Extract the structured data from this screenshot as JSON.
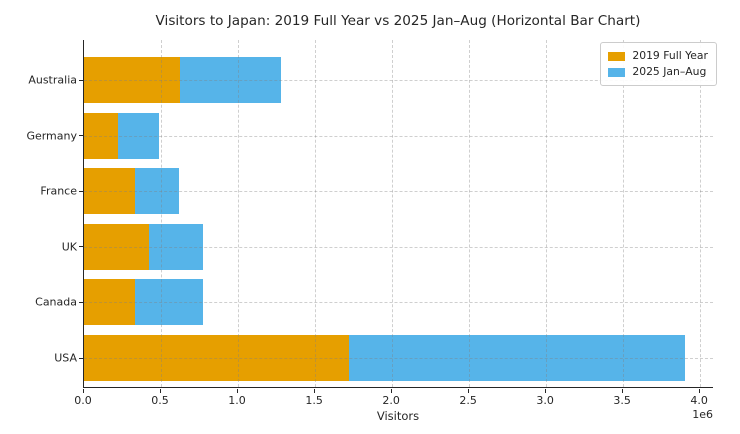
{
  "figure": {
    "background": "#ffffff",
    "text_color": "#262626",
    "spine_color": "#262626",
    "grid_color": "#828282"
  },
  "chart_data": {
    "type": "bar",
    "orientation": "horizontal",
    "stacked": true,
    "title": "Visitors to Japan: 2019 Full Year vs 2025 Jan–Aug (Horizontal Bar Chart)",
    "xlabel": "Visitors",
    "ylabel": "",
    "offset_label": "1e6",
    "categories_top_to_bottom": [
      "Australia",
      "Germany",
      "France",
      "UK",
      "Canada",
      "USA"
    ],
    "series": [
      {
        "name": "2019 Full Year",
        "color": "#E69F00",
        "values_millions": [
          0.62,
          0.22,
          0.33,
          0.42,
          0.33,
          1.72
        ]
      },
      {
        "name": "2025 Jan–Aug",
        "color": "#56B4E9",
        "values_millions": [
          0.66,
          0.27,
          0.29,
          0.35,
          0.44,
          2.18
        ]
      }
    ],
    "stacked_totals_millions": [
      1.28,
      0.49,
      0.62,
      0.77,
      0.77,
      3.9
    ],
    "x_ticks": [
      "0.0",
      "0.5",
      "1.0",
      "1.5",
      "2.0",
      "2.5",
      "3.0",
      "3.5",
      "4.0"
    ],
    "xlim_millions": [
      0,
      4.09
    ],
    "grid": true,
    "grid_style": "dashed",
    "legend_position": "upper right"
  },
  "legend": {
    "items": [
      {
        "label": "2019 Full Year",
        "color": "#E69F00"
      },
      {
        "label": "2025 Jan–Aug",
        "color": "#56B4E9"
      }
    ]
  }
}
